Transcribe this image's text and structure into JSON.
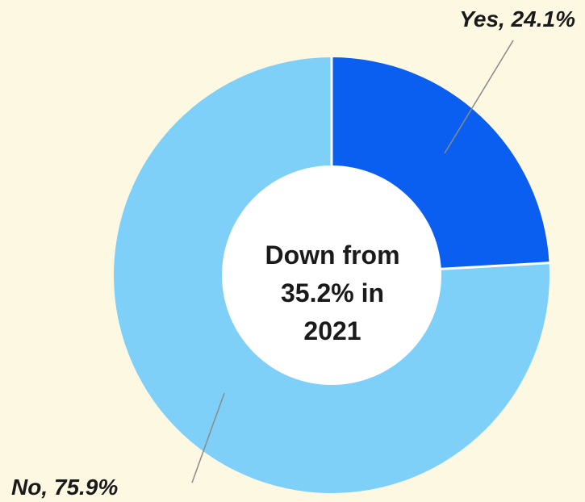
{
  "chart_data": {
    "type": "pie",
    "donut": true,
    "slices": [
      {
        "label": "Yes",
        "value": 24.1,
        "display": "Yes, 24.1%",
        "color": "#0a5ff0"
      },
      {
        "label": "No",
        "value": 75.9,
        "display": "No, 75.9%",
        "color": "#7fd0f9"
      }
    ],
    "center_text": [
      "Down from",
      "35.2% in",
      "2021"
    ],
    "colors": {
      "background": "#fdf8e2",
      "hole": "#ffffff",
      "separator": "#ffffff",
      "leader_line": "#8a8a8a",
      "text": "#1a1a1a"
    }
  }
}
